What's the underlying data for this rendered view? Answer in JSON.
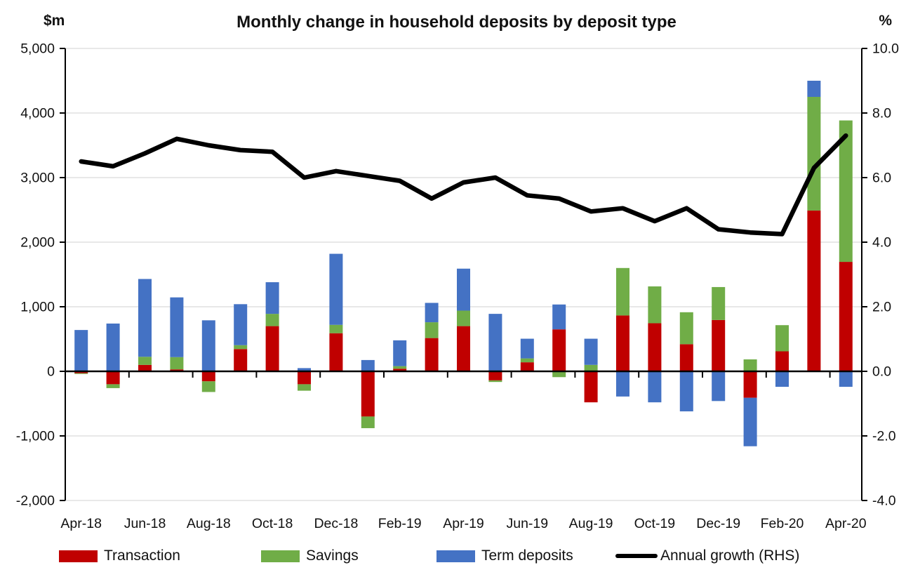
{
  "title": "Monthly change in household deposits by deposit type",
  "left_axis_unit": "$m",
  "right_axis_unit": "%",
  "legend": {
    "transaction": "Transaction",
    "savings": "Savings",
    "term_deposits": "Term deposits",
    "annual_growth": "Annual growth (RHS)"
  },
  "colors": {
    "transaction": "#C00000",
    "savings": "#70AD47",
    "term_deposits": "#4472C4",
    "annual_growth": "#000000",
    "gridline": "#dadada",
    "axis": "#000000"
  },
  "chart_data": {
    "type": "bar",
    "subtype": "stacked-bars-with-line-overlay",
    "title": "Monthly change in household deposits by deposit type",
    "categories": [
      "Apr-18",
      "May-18",
      "Jun-18",
      "Jul-18",
      "Aug-18",
      "Sep-18",
      "Oct-18",
      "Nov-18",
      "Dec-18",
      "Jan-19",
      "Feb-19",
      "Mar-19",
      "Apr-19",
      "May-19",
      "Jun-19",
      "Jul-19",
      "Aug-19",
      "Sep-19",
      "Oct-19",
      "Nov-19",
      "Dec-19",
      "Jan-20",
      "Feb-20",
      "Mar-20",
      "Apr-20"
    ],
    "x_tick_labels": [
      "Apr-18",
      "Jun-18",
      "Aug-18",
      "Oct-18",
      "Dec-18",
      "Feb-19",
      "Apr-19",
      "Jun-19",
      "Aug-19",
      "Oct-19",
      "Dec-19",
      "Feb-20",
      "Apr-20"
    ],
    "series": [
      {
        "name": "Transaction",
        "color": "#C00000",
        "values": [
          -30,
          -200,
          100,
          30,
          -155,
          345,
          700,
          -200,
          590,
          -700,
          40,
          515,
          700,
          -140,
          140,
          650,
          -480,
          865,
          745,
          420,
          795,
          -410,
          310,
          2490,
          1695
        ]
      },
      {
        "name": "Savings",
        "color": "#70AD47",
        "values": [
          -10,
          -60,
          125,
          190,
          -165,
          60,
          190,
          -100,
          130,
          -180,
          40,
          245,
          240,
          -25,
          60,
          -90,
          100,
          735,
          570,
          495,
          510,
          185,
          405,
          1760,
          2190
        ]
      },
      {
        "name": "Term deposits",
        "color": "#4472C4",
        "values": [
          640,
          740,
          1205,
          925,
          790,
          635,
          490,
          50,
          1100,
          175,
          400,
          300,
          650,
          890,
          305,
          385,
          405,
          -390,
          -480,
          -620,
          -460,
          -750,
          -240,
          250,
          -240
        ]
      }
    ],
    "line_series": {
      "name": "Annual growth (RHS)",
      "color": "#000000",
      "axis": "right",
      "values": [
        6.5,
        6.35,
        6.75,
        7.2,
        7.0,
        6.85,
        6.8,
        6.0,
        6.2,
        6.05,
        5.9,
        5.35,
        5.85,
        6.0,
        5.45,
        5.35,
        4.95,
        5.05,
        4.65,
        5.05,
        4.4,
        4.3,
        4.25,
        6.3,
        7.3
      ]
    },
    "left_axis": {
      "label": "$m",
      "min": -2000,
      "max": 5000,
      "step": 1000,
      "tick_labels": [
        "5,000",
        "4,000",
        "3,000",
        "2,000",
        "1,000",
        "0",
        "-1,000",
        "-2,000"
      ]
    },
    "right_axis": {
      "label": "%",
      "min": -4.0,
      "max": 10.0,
      "step": 2.0,
      "tick_labels": [
        "10.0",
        "8.0",
        "6.0",
        "4.0",
        "2.0",
        "0.0",
        "-2.0",
        "-4.0"
      ]
    },
    "grid": true,
    "legend_position": "bottom",
    "stacked": true
  }
}
